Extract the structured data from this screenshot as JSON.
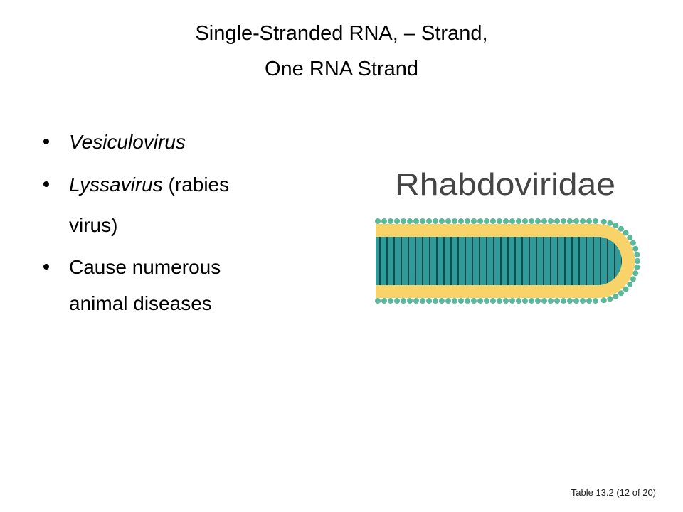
{
  "slide": {
    "title": [
      "Single-Stranded RNA, – Strand,",
      "One RNA Strand"
    ],
    "bullets": [
      {
        "italic": "Vesiculovirus"
      },
      {
        "italic": "Lyssavirus",
        "plain": [
          "(rabies",
          "virus)"
        ]
      },
      {
        "plain": [
          "Cause numerous",
          "animal diseases"
        ]
      }
    ],
    "figure_label": "Rhabdoviridae",
    "footer": "Table 13.2 (12 of 20)"
  }
}
